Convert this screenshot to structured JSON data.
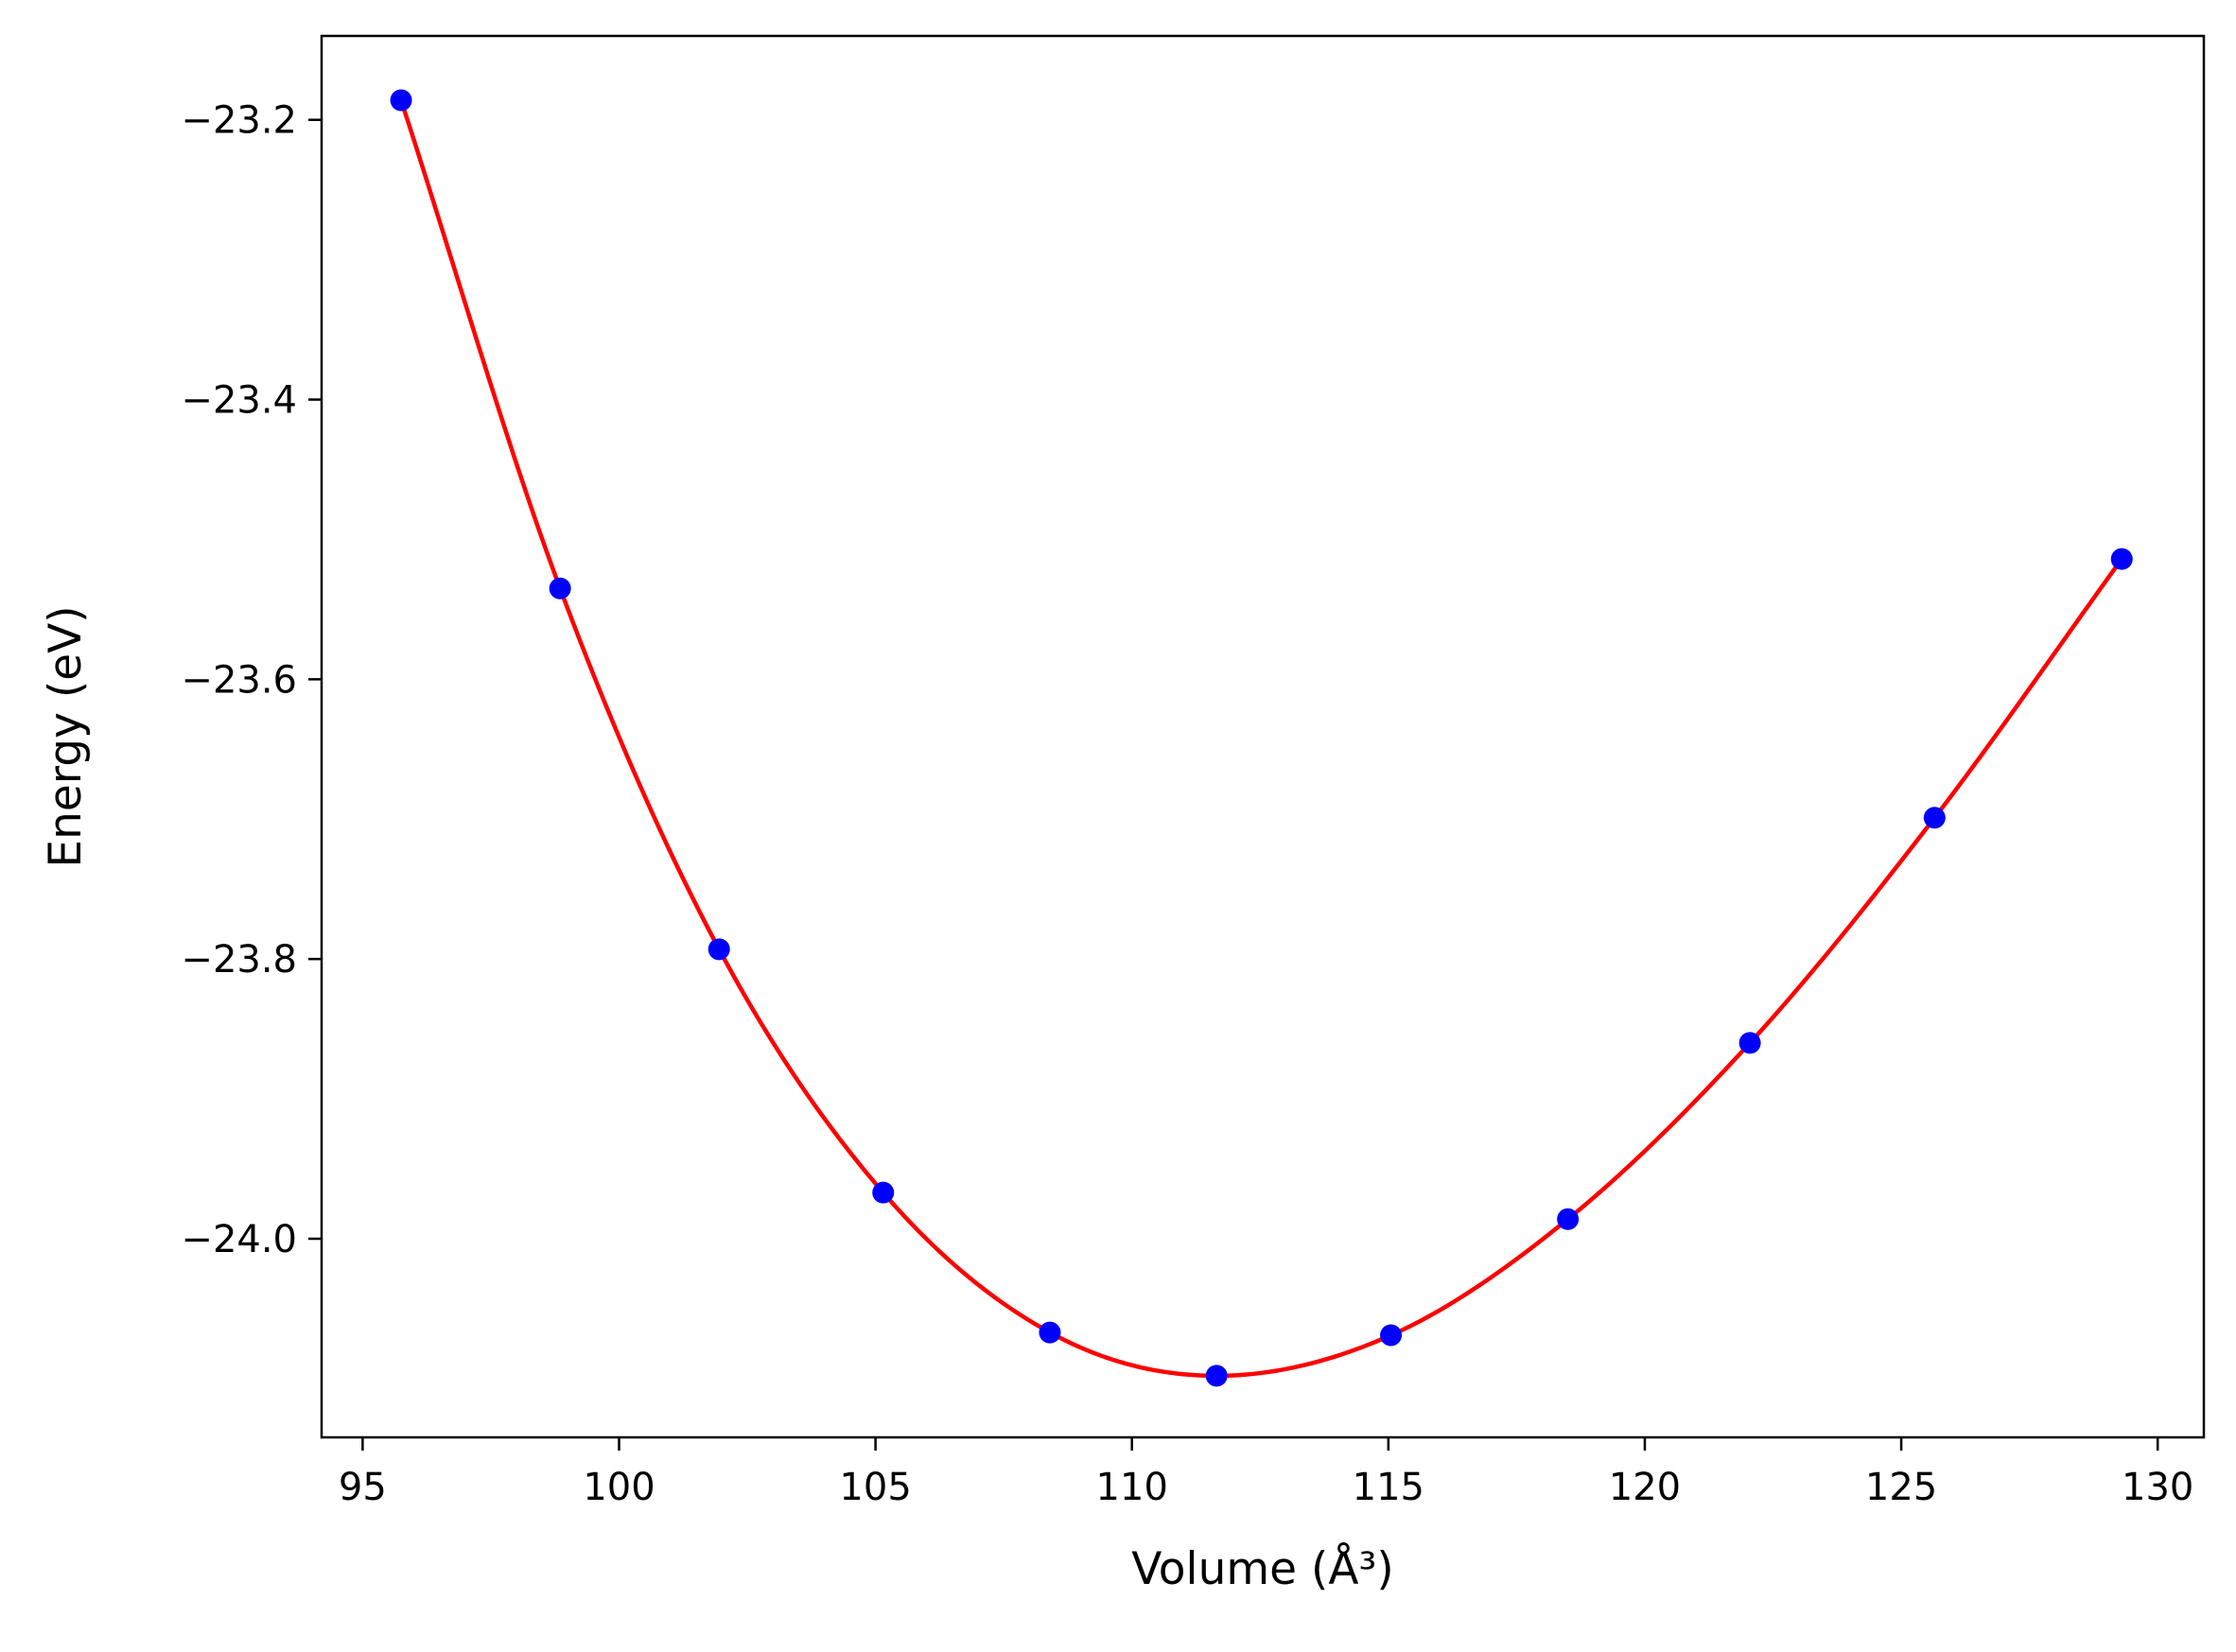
{
  "chart_data": {
    "type": "scatter",
    "xlabel": "Volume (Å³)",
    "ylabel": "Energy (eV)",
    "xlim": [
      94.2,
      130.9
    ],
    "ylim": [
      -24.142,
      -23.14
    ],
    "xticks": [
      95,
      100,
      105,
      110,
      115,
      120,
      125,
      130
    ],
    "xtick_labels": [
      "95",
      "100",
      "105",
      "110",
      "115",
      "120",
      "125",
      "130"
    ],
    "yticks": [
      -24.0,
      -23.8,
      -23.6,
      -23.4,
      -23.2
    ],
    "ytick_labels": [
      "−24.0",
      "−23.8",
      "−23.6",
      "−23.4",
      "−23.2"
    ],
    "grid": false,
    "series": [
      {
        "kind": "points",
        "color": "#0000ff",
        "x": [
          95.75,
          98.85,
          101.95,
          105.15,
          108.4,
          111.65,
          115.05,
          118.5,
          122.05,
          125.65,
          129.3
        ],
        "y": [
          -23.186,
          -23.535,
          -23.793,
          -23.967,
          -24.067,
          -24.098,
          -24.069,
          -23.986,
          -23.86,
          -23.699,
          -23.514
        ]
      },
      {
        "kind": "fit-curve",
        "color": "#ff0000",
        "x": [
          95.75,
          98.85,
          101.95,
          105.15,
          108.4,
          111.65,
          115.05,
          118.5,
          122.05,
          125.65,
          129.3
        ],
        "y": [
          -23.186,
          -23.535,
          -23.793,
          -23.967,
          -24.067,
          -24.098,
          -24.069,
          -23.986,
          -23.86,
          -23.699,
          -23.514
        ]
      }
    ]
  }
}
